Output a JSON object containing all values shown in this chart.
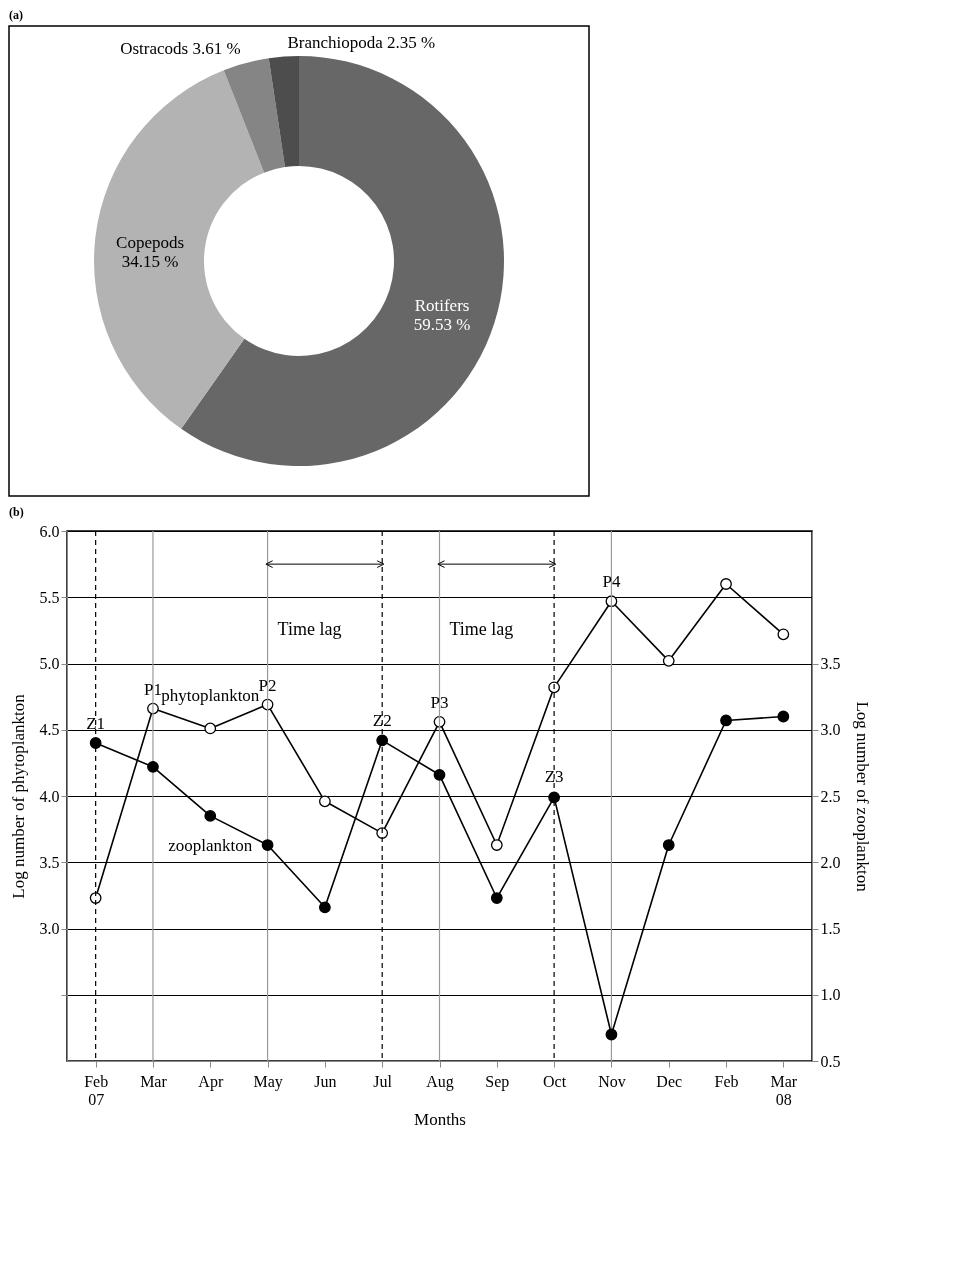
{
  "chart_data": [
    {
      "type": "donut",
      "title": "(a)",
      "categories": [
        "Rotifers",
        "Copepods",
        "Ostracods",
        "Branchiopoda"
      ],
      "values": [
        59.53,
        34.15,
        3.61,
        2.35
      ],
      "colors": [
        "#676767",
        "#b3b3b3",
        "#858585",
        "#4d4d4d"
      ],
      "value_labels": [
        "59.53 %",
        "34.15 %",
        "3.61 %",
        "2.35 %"
      ]
    },
    {
      "type": "line",
      "title": "(b)",
      "xlabel": "Months",
      "ylabel": "Log number of phytoplankton",
      "y2label": "Log number of zooplankton",
      "categories": [
        "Feb 07",
        "Mar",
        "Apr",
        "May",
        "Jun",
        "Jul",
        "Aug",
        "Sep",
        "Oct",
        "Nov",
        "Dec",
        "Feb",
        "Mar 08"
      ],
      "series": [
        {
          "name": "phytoplankton",
          "color": "#000000",
          "values": [
            3.23,
            4.66,
            4.51,
            4.69,
            3.96,
            3.72,
            4.56,
            3.63,
            4.82,
            5.47,
            5.02,
            5.6,
            5.22
          ]
        },
        {
          "name": "zooplankton",
          "color": "#000000",
          "axis": "y2",
          "values": [
            2.9,
            2.72,
            2.35,
            2.13,
            1.66,
            2.92,
            2.66,
            1.73,
            2.49,
            0.7,
            2.13,
            3.07,
            3.1
          ]
        }
      ],
      "ylim": [
        2.0,
        6.0
      ],
      "yticks": [
        {
          "value": 2.5,
          "label": null
        },
        {
          "value": 3,
          "label": "3.0"
        },
        {
          "value": 3.5,
          "label": "3.5"
        },
        {
          "value": 4,
          "label": "4.0"
        },
        {
          "value": 4.5,
          "label": "4.5"
        },
        {
          "value": 5,
          "label": "5.0"
        },
        {
          "value": 5.5,
          "label": "5.5"
        },
        {
          "value": 6,
          "label": "6.0"
        }
      ],
      "y2lim": [
        0.5,
        4.5
      ],
      "y2ticks": [
        {
          "value": 0.5,
          "label": "0.5"
        },
        {
          "value": 1,
          "label": "1.0"
        },
        {
          "value": 1.5,
          "label": "1.5"
        },
        {
          "value": 2,
          "label": "2.0"
        },
        {
          "value": 2.5,
          "label": "2.5"
        },
        {
          "value": 3,
          "label": "3.0"
        },
        {
          "value": 3.5,
          "label": "3.5"
        }
      ],
      "grid": "y",
      "marker": "circle",
      "line_style": "solid",
      "ref_lines": [
        {
          "axis": "x",
          "value": "Mar",
          "color": "#999999",
          "line_style": "solid"
        },
        {
          "axis": "x",
          "value": "May",
          "color": "#999999",
          "line_style": "solid"
        },
        {
          "axis": "x",
          "value": "Aug",
          "color": "#999999",
          "line_style": "solid"
        },
        {
          "axis": "x",
          "value": "Nov",
          "color": "#999999",
          "line_style": "solid"
        },
        {
          "axis": "x",
          "value": "Feb 07",
          "color": "#000000",
          "line_style": "dashed"
        },
        {
          "axis": "x",
          "value": "Jul",
          "color": "#000000",
          "line_style": "dashed"
        },
        {
          "axis": "x",
          "value": "Oct",
          "color": "#000000",
          "line_style": "dashed"
        }
      ],
      "annotations": [
        {
          "text": "Time lag",
          "x": "May",
          "y": 5.25
        },
        {
          "text": "Time lag",
          "x": "Aug",
          "y": 5.25
        },
        {
          "text": "P1",
          "x": "Mar",
          "y": 4.66
        },
        {
          "text": "P2",
          "x": "May",
          "y": 4.69
        },
        {
          "text": "P3",
          "x": "Aug",
          "y": 4.56
        },
        {
          "text": "P4",
          "x": "Nov",
          "y": 5.47
        },
        {
          "text": "Z1",
          "x": "Feb 07",
          "y": 4.4
        },
        {
          "text": "Z2",
          "x": "Jul",
          "y": 4.42
        },
        {
          "text": "Z3",
          "x": "Oct",
          "y": 4.0
        }
      ]
    }
  ]
}
